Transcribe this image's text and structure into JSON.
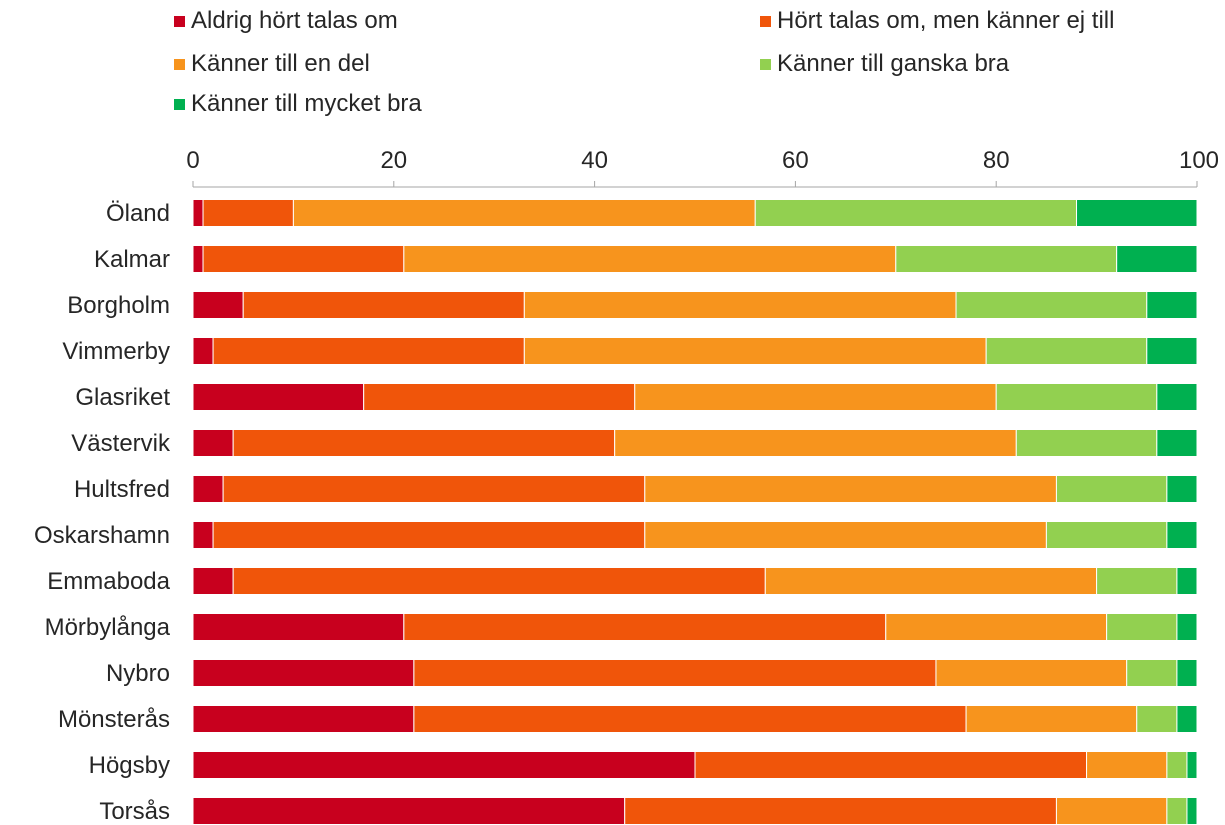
{
  "chart_data": {
    "type": "bar",
    "orientation": "horizontal",
    "stacked": true,
    "title": "",
    "xlabel": "",
    "ylabel": "",
    "xlim": [
      0,
      100
    ],
    "xticks": [
      0,
      20,
      40,
      60,
      80,
      100
    ],
    "grid": false,
    "legend_position": "top",
    "categories": [
      "Öland",
      "Kalmar",
      "Borgholm",
      "Vimmerby",
      "Glasriket",
      "Västervik",
      "Hultsfred",
      "Oskarshamn",
      "Emmaboda",
      "Mörbylånga",
      "Nybro",
      "Mönsterås",
      "Högsby",
      "Torsås"
    ],
    "series": [
      {
        "name": "Aldrig hört talas om",
        "color": "#c8001e",
        "values": [
          1,
          1,
          5,
          2,
          17,
          4,
          3,
          2,
          4,
          21,
          22,
          22,
          50,
          43
        ]
      },
      {
        "name": "Hört talas om, men känner ej till",
        "color": "#f0550a",
        "values": [
          9,
          20,
          28,
          31,
          27,
          38,
          42,
          43,
          53,
          48,
          52,
          55,
          39,
          43
        ]
      },
      {
        "name": "Känner till en del",
        "color": "#f7941d",
        "values": [
          46,
          49,
          43,
          46,
          36,
          40,
          41,
          40,
          33,
          22,
          19,
          17,
          8,
          11
        ]
      },
      {
        "name": "Känner till ganska bra",
        "color": "#92d050",
        "values": [
          32,
          22,
          19,
          16,
          16,
          14,
          11,
          12,
          8,
          7,
          5,
          4,
          2,
          2
        ]
      },
      {
        "name": "Känner till mycket bra",
        "color": "#00b050",
        "values": [
          12,
          8,
          5,
          5,
          4,
          4,
          3,
          3,
          2,
          2,
          2,
          2,
          1,
          1
        ]
      }
    ]
  }
}
